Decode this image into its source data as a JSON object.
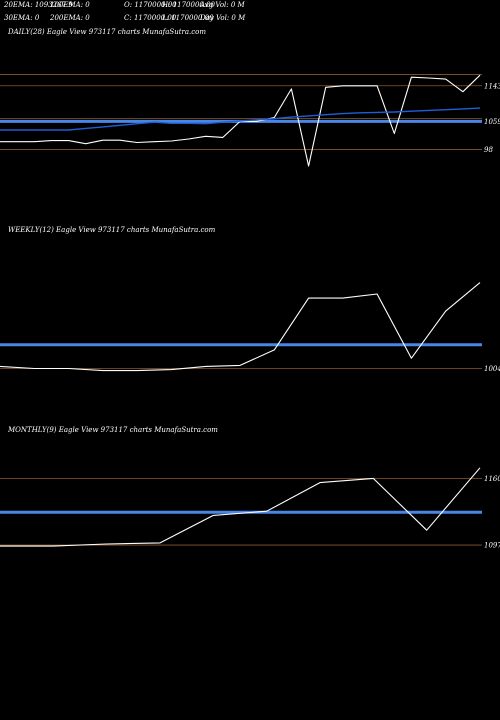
{
  "header": {
    "row1": {
      "ema20": "20EMA: 1093267.9",
      "ema100": "100EMA: 0",
      "open": "O: 1170000.00",
      "high": "H: 1170000.00",
      "avg_vol": "Avg Vol: 0  M"
    },
    "row2": {
      "ema30": "30EMA: 0",
      "ema200": "200EMA: 0",
      "close": "C: 1170000.00",
      "low": "L: 1170000.00",
      "day_vol": "Day Vol: 0  M"
    }
  },
  "colors": {
    "background": "#000000",
    "price_line": "#ffffff",
    "ema_line": "#1e5fd6",
    "support_band": "#4a86e8",
    "grid_line": "#8a5a2a"
  },
  "chart_data": [
    {
      "type": "line",
      "title": "DAILY(28) Eagle  View  973117 charts MunafaSutra.com",
      "y_tick_labels": [
        "1143",
        "1059",
        "98"
      ],
      "ylim": [
        800,
        1260
      ],
      "reference_lines": [
        1172,
        1143,
        1059,
        1052,
        980
      ],
      "series": [
        {
          "role": "price",
          "values": [
            1000,
            1000,
            1000,
            1003,
            1003,
            995,
            1004,
            1004,
            998,
            1000,
            1002,
            1007,
            1014,
            1011,
            1052,
            1052,
            1062,
            1135,
            938,
            1139,
            1143,
            1143,
            1143,
            1021,
            1165,
            1163,
            1160,
            1128,
            1170
          ]
        },
        {
          "role": "ema",
          "values": [
            1030,
            1030,
            1030,
            1030,
            1030,
            1034,
            1038,
            1042,
            1046,
            1050,
            1047,
            1047,
            1046,
            1050,
            1053,
            1056,
            1059,
            1063,
            1066,
            1069,
            1072,
            1074,
            1075,
            1076,
            1078,
            1080,
            1082,
            1084,
            1086
          ]
        }
      ]
    },
    {
      "type": "line",
      "title": "WEEKLY(12) Eagle  View  973117 charts MunafaSutra.com",
      "y_tick_labels": [
        "1004"
      ],
      "ylim": [
        920,
        1260
      ],
      "reference_lines": [
        1050,
        1004
      ],
      "series": [
        {
          "role": "price",
          "values": [
            1008,
            1004,
            1004,
            1000,
            1000,
            1002,
            1008,
            1010,
            1040,
            1140,
            1140,
            1148,
            1024,
            1115,
            1170
          ]
        }
      ]
    },
    {
      "type": "line",
      "title": "MONTHLY(9) Eagle  View  973117 charts MunafaSutra.com",
      "y_tick_labels": [
        "1160",
        "1097"
      ],
      "ylim": [
        1030,
        1200
      ],
      "reference_lines": [
        1160,
        1128,
        1097
      ],
      "series": [
        {
          "role": "price",
          "values": [
            1096,
            1096,
            1098,
            1099,
            1125,
            1129,
            1156,
            1160,
            1111,
            1170
          ]
        }
      ]
    }
  ]
}
